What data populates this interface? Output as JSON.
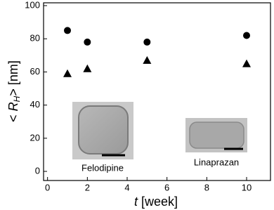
{
  "chart_data": {
    "type": "scatter",
    "xlabel": {
      "symbol": "t",
      "unit": "[week]"
    },
    "ylabel": {
      "prefix": "<",
      "symbol": "R",
      "subscript": "H",
      "suffix": "> [nm]"
    },
    "xlim": [
      -0.2,
      11.2
    ],
    "xticks": [
      0,
      2,
      4,
      6,
      8,
      10
    ],
    "ylim": [
      -5.5,
      101.7
    ],
    "yticks": [
      0,
      20,
      40,
      60,
      80,
      100
    ],
    "series": [
      {
        "marker": "circle",
        "color": "#000000",
        "x": [
          1,
          2,
          5,
          10
        ],
        "values": [
          85,
          78,
          78,
          82
        ]
      },
      {
        "marker": "triangle",
        "color": "#000000",
        "x": [
          1,
          2,
          5,
          10
        ],
        "values": [
          59,
          62,
          67,
          65
        ]
      }
    ],
    "annotations": [
      "Felodipine",
      "Linaprazan"
    ]
  }
}
